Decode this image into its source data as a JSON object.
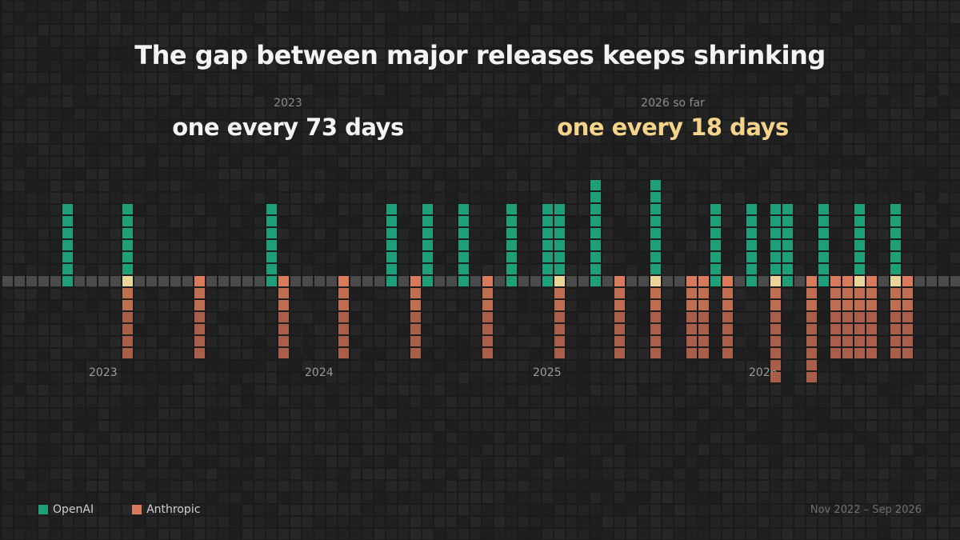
{
  "title": "The gap between major releases keeps shrinking",
  "stats": [
    {
      "label": "2023",
      "value": "one every 73 days"
    },
    {
      "label": "2026 so far",
      "value": "one every 18 days"
    }
  ],
  "legend": [
    {
      "name": "OpenAI",
      "color": "#1f9e7a"
    },
    {
      "name": "Anthropic",
      "color": "#d97a5c"
    }
  ],
  "range_note": "Nov 2022 – Sep 2026",
  "colors": {
    "openai": "#1f9e7a",
    "anthropic": "#d97a5c",
    "anthropic_deep": "#a85e48",
    "both": "#ecd39a",
    "axis": "#4a4a4a",
    "empty_cell": "#232323",
    "highlight": "#f5d48a"
  },
  "chart_data": {
    "type": "bar",
    "description_units": "weeks since Nov 2022 (column index); heights are cell counts",
    "year_ticks": [
      {
        "label": "2023",
        "week": 7
      },
      {
        "label": "2024",
        "week": 25
      },
      {
        "label": "2025",
        "week": 44
      },
      {
        "label": "2026",
        "week": 62
      }
    ],
    "series": [
      {
        "name": "OpenAI",
        "x": [
          5,
          10,
          22,
          32,
          35,
          38,
          42,
          45,
          46,
          49,
          54,
          59,
          62,
          64,
          65,
          68,
          71,
          74
        ],
        "values": [
          6,
          6,
          6,
          6,
          6,
          6,
          6,
          6,
          6,
          8,
          8,
          6,
          6,
          6,
          6,
          6,
          6,
          6
        ]
      },
      {
        "name": "Anthropic",
        "x": [
          10,
          16,
          23,
          28,
          34,
          40,
          46,
          51,
          54,
          57,
          58,
          60,
          64,
          67,
          69,
          70,
          71,
          72,
          74,
          75
        ],
        "values": [
          6,
          6,
          6,
          6,
          6,
          6,
          6,
          6,
          6,
          6,
          6,
          6,
          8,
          8,
          6,
          6,
          6,
          6,
          6,
          6
        ]
      }
    ]
  }
}
